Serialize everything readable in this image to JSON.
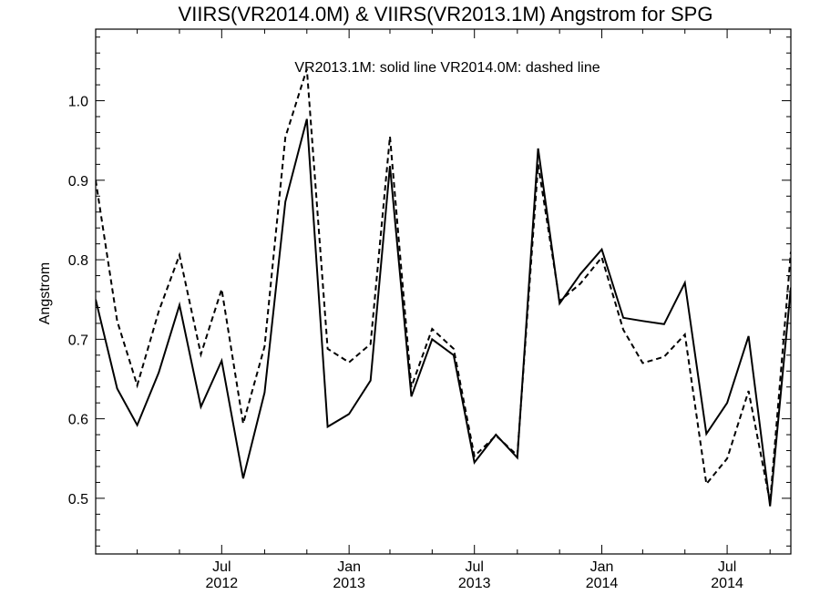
{
  "chart_data": {
    "type": "line",
    "title": "VIIRS(VR2014.0M) & VIIRS(VR2013.1M)  Angstrom for SPG",
    "annotation": "VR2013.1M: solid line   VR2014.0M: dashed line",
    "xlabel": "",
    "ylabel": "Angstrom",
    "ylim": [
      0.43,
      1.09
    ],
    "yticks": [
      0.5,
      0.6,
      0.7,
      0.8,
      0.9,
      1.0
    ],
    "ytick_labels": [
      "0.5",
      "0.6",
      "0.7",
      "0.8",
      "0.9",
      "1.0"
    ],
    "xlim": [
      "2012-01-15",
      "2014-10-15"
    ],
    "xtick_labels": [
      {
        "date": "2012-07-15",
        "month": "Jul",
        "year": "2012"
      },
      {
        "date": "2013-01-15",
        "month": "Jan",
        "year": "2013"
      },
      {
        "date": "2013-07-15",
        "month": "Jul",
        "year": "2013"
      },
      {
        "date": "2014-01-15",
        "month": "Jan",
        "year": "2014"
      },
      {
        "date": "2014-07-15",
        "month": "Jul",
        "year": "2014"
      }
    ],
    "x": [
      "2012-01-15",
      "2012-02-15",
      "2012-03-15",
      "2012-04-15",
      "2012-05-15",
      "2012-06-15",
      "2012-07-15",
      "2012-08-15",
      "2012-09-15",
      "2012-10-15",
      "2012-11-15",
      "2012-12-15",
      "2013-01-15",
      "2013-02-15",
      "2013-03-15",
      "2013-04-15",
      "2013-05-15",
      "2013-06-15",
      "2013-07-15",
      "2013-08-15",
      "2013-09-15",
      "2013-10-15",
      "2013-11-15",
      "2013-12-15",
      "2014-01-15",
      "2014-02-15",
      "2014-03-15",
      "2014-04-15",
      "2014-05-15",
      "2014-06-15",
      "2014-07-15",
      "2014-08-15",
      "2014-09-15",
      "2014-10-15"
    ],
    "series": [
      {
        "name": "VR2013.1M",
        "style": "solid",
        "color": "#000000",
        "values": [
          0.75,
          0.638,
          0.592,
          0.658,
          0.743,
          0.615,
          0.673,
          0.525,
          0.633,
          0.873,
          0.977,
          0.59,
          0.606,
          0.648,
          0.918,
          0.628,
          0.7,
          0.68,
          0.545,
          0.58,
          0.551,
          0.94,
          0.745,
          0.782,
          0.813,
          0.727,
          0.723,
          0.719,
          0.771,
          0.581,
          0.62,
          0.704,
          0.49,
          0.765
        ]
      },
      {
        "name": "VR2014.0M",
        "style": "dashed",
        "color": "#000000",
        "values": [
          0.9,
          0.723,
          0.642,
          0.735,
          0.806,
          0.681,
          0.763,
          0.594,
          0.691,
          0.954,
          1.04,
          0.688,
          0.671,
          0.694,
          0.955,
          0.64,
          0.713,
          0.688,
          0.553,
          0.579,
          0.554,
          0.92,
          0.748,
          0.77,
          0.803,
          0.712,
          0.67,
          0.678,
          0.706,
          0.518,
          0.55,
          0.635,
          0.495,
          0.81
        ]
      }
    ]
  }
}
